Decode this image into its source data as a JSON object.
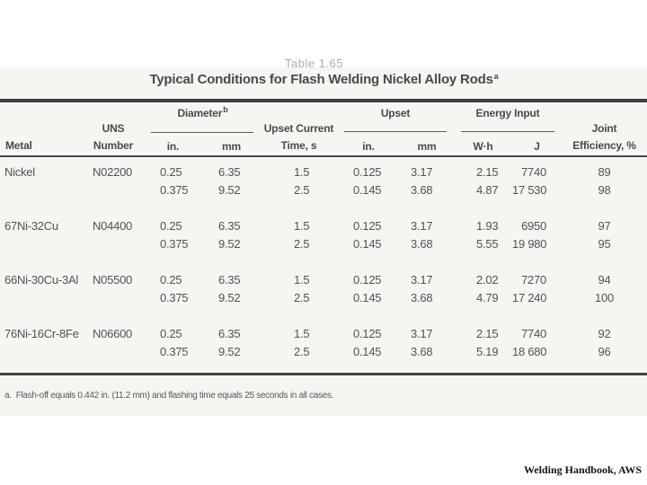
{
  "caption": "Welding Handbook, AWS",
  "overlay": {
    "text": "Table 1.65"
  },
  "table": {
    "title": {
      "text": "Typical Conditions for Flash Welding Nickel Alloy Rods",
      "marker": "a"
    },
    "header": {
      "metal": "Metal",
      "uns": [
        "UNS",
        "Number"
      ],
      "diameter": {
        "label": "Diameter",
        "marker": "b",
        "sub": [
          "in.",
          "mm"
        ]
      },
      "upset_current": [
        "Upset Current",
        "Time, s"
      ],
      "upset": {
        "label": "Upset",
        "sub": [
          "in.",
          "mm"
        ]
      },
      "energy": {
        "label": "Energy Input",
        "sub": [
          "W·h",
          "J"
        ]
      },
      "joint": [
        "Joint",
        "Efficiency, %"
      ]
    },
    "rows": [
      {
        "metal": "Nickel",
        "uns": "N02200",
        "dia_in": [
          "0.25",
          "0.375"
        ],
        "dia_mm": [
          "6.35",
          "9.52"
        ],
        "time": [
          "1.5",
          "2.5"
        ],
        "upset_in": [
          "0.125",
          "0.145"
        ],
        "upset_mm": [
          "3.17",
          "3.68"
        ],
        "wh": [
          "2.15",
          "4.87"
        ],
        "j": [
          "7740",
          "17 530"
        ],
        "eff": [
          "89",
          "98"
        ]
      },
      {
        "metal": "67Ni-32Cu",
        "uns": "N04400",
        "dia_in": [
          "0.25",
          "0.375"
        ],
        "dia_mm": [
          "6.35",
          "9.52"
        ],
        "time": [
          "1.5",
          "2.5"
        ],
        "upset_in": [
          "0.125",
          "0.145"
        ],
        "upset_mm": [
          "3.17",
          "3.68"
        ],
        "wh": [
          "1.93",
          "5.55"
        ],
        "j": [
          "6950",
          "19 980"
        ],
        "eff": [
          "97",
          "95"
        ]
      },
      {
        "metal": "66Ni-30Cu-3Al",
        "uns": "N05500",
        "dia_in": [
          "0.25",
          "0.375"
        ],
        "dia_mm": [
          "6.35",
          "9.52"
        ],
        "time": [
          "1.5",
          "2.5"
        ],
        "upset_in": [
          "0.125",
          "0.145"
        ],
        "upset_mm": [
          "3.17",
          "3.68"
        ],
        "wh": [
          "2.02",
          "4.79"
        ],
        "j": [
          "7270",
          "17 240"
        ],
        "eff": [
          "94",
          "100"
        ]
      },
      {
        "metal": "76Ni-16Cr-8Fe",
        "uns": "N06600",
        "dia_in": [
          "0.25",
          "0.375"
        ],
        "dia_mm": [
          "6.35",
          "9.52"
        ],
        "time": [
          "1.5",
          "2.5"
        ],
        "upset_in": [
          "0.125",
          "0.145"
        ],
        "upset_mm": [
          "3.17",
          "3.68"
        ],
        "wh": [
          "2.15",
          "5.19"
        ],
        "j": [
          "7740",
          "18 680"
        ],
        "eff": [
          "92",
          "96"
        ]
      }
    ],
    "footnote": "a.  Flash-off equals 0.442 in. (11.2 mm) and flashing time equals 25 seconds in all cases."
  },
  "colors": {
    "scan_bg": "#f5f5f2",
    "rule": "#3e3e3e",
    "text": "#4f4f4f"
  }
}
